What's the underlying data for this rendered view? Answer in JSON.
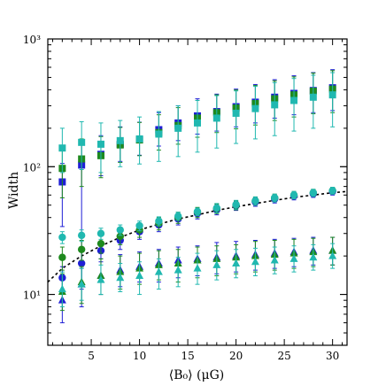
{
  "chart_data": {
    "type": "scatter",
    "title": "",
    "xlabel": "⟨B₀⟩ (μG)",
    "ylabel": "Width",
    "xlim": [
      0.5,
      31.5
    ],
    "ylim": [
      4,
      1000
    ],
    "yscale": "log",
    "grid": false,
    "legend": "none",
    "x_ticks": [
      5,
      10,
      15,
      20,
      25,
      30
    ],
    "x_tick_labels": [
      "5",
      "10",
      "15",
      "20",
      "25",
      "30"
    ],
    "y_ticks": [
      10,
      100,
      1000
    ],
    "y_tick_labels": [
      "10¹",
      "10²",
      "10³"
    ],
    "x": [
      2,
      4,
      6,
      8,
      10,
      12,
      14,
      16,
      18,
      20,
      22,
      24,
      26,
      28,
      30
    ],
    "series": [
      {
        "marker": "square",
        "color": "#1f1fd6",
        "values": [
          76,
          103,
          125,
          150,
          163,
          195,
          220,
          250,
          270,
          295,
          320,
          350,
          375,
          395,
          415
        ],
        "err_low": [
          42,
          92,
          40,
          40,
          40,
          50,
          60,
          70,
          80,
          90,
          100,
          110,
          120,
          130,
          140
        ],
        "err_high": [
          30,
          50,
          50,
          55,
          60,
          70,
          80,
          90,
          100,
          110,
          120,
          130,
          140,
          150,
          160
        ]
      },
      {
        "marker": "square",
        "color": "#1e8a1e",
        "values": [
          97,
          115,
          122,
          148,
          162,
          185,
          210,
          240,
          265,
          288,
          312,
          340,
          365,
          390,
          405
        ],
        "err_low": [
          40,
          45,
          40,
          40,
          40,
          50,
          60,
          70,
          80,
          90,
          100,
          110,
          120,
          130,
          140
        ],
        "err_high": [
          40,
          50,
          50,
          55,
          60,
          70,
          80,
          90,
          100,
          110,
          120,
          130,
          140,
          150,
          160
        ]
      },
      {
        "marker": "square",
        "color": "#20b8b0",
        "values": [
          140,
          155,
          150,
          160,
          165,
          180,
          200,
          220,
          240,
          262,
          285,
          305,
          330,
          350,
          365
        ],
        "err_low": [
          50,
          60,
          60,
          60,
          60,
          70,
          80,
          90,
          100,
          110,
          120,
          130,
          140,
          150,
          160
        ],
        "err_high": [
          60,
          70,
          70,
          70,
          80,
          90,
          100,
          110,
          120,
          130,
          140,
          150,
          160,
          170,
          180
        ]
      },
      {
        "marker": "circle",
        "color": "#1f1fd6",
        "values": [
          13.5,
          17.5,
          22,
          26.5,
          31,
          35,
          39,
          43,
          46,
          49.5,
          53,
          56,
          59,
          61.5,
          64
        ],
        "err_low": [
          3,
          6,
          4,
          4,
          4,
          4,
          4,
          4,
          4,
          4,
          4,
          4,
          4,
          4,
          4
        ],
        "err_high": [
          3,
          4,
          4,
          4,
          4,
          4,
          4,
          4,
          4,
          4,
          4,
          4,
          4,
          4,
          4
        ]
      },
      {
        "marker": "circle",
        "color": "#1e8a1e",
        "values": [
          19.5,
          22.5,
          25,
          28.5,
          32,
          36,
          40,
          44,
          47,
          50,
          54,
          57,
          60,
          62.5,
          65
        ],
        "err_low": [
          4,
          4,
          4,
          4,
          4,
          4,
          4,
          4,
          4,
          4,
          4,
          4,
          4,
          4,
          4
        ],
        "err_high": [
          4,
          4,
          4,
          4,
          4,
          4,
          4,
          4,
          4,
          4,
          4,
          4,
          4,
          4,
          4
        ]
      },
      {
        "marker": "circle",
        "color": "#20b8b0",
        "values": [
          28,
          29,
          30,
          32,
          34.5,
          37.5,
          41,
          44.5,
          47.5,
          50.5,
          54,
          57,
          60,
          62.5,
          65
        ],
        "err_low": [
          3,
          3,
          3,
          3,
          3,
          3,
          3,
          3,
          4,
          4,
          4,
          4,
          4,
          4,
          4
        ],
        "err_high": [
          3,
          3,
          3,
          3,
          3,
          3,
          3,
          3,
          4,
          4,
          4,
          4,
          4,
          4,
          4
        ]
      },
      {
        "marker": "triangle",
        "color": "#1f1fd6",
        "values": [
          9,
          12,
          14,
          15.5,
          16.5,
          17.5,
          18.5,
          19,
          19.5,
          20,
          20.5,
          21,
          21.5,
          22,
          22
        ],
        "err_low": [
          3,
          4,
          4,
          4,
          4,
          5,
          5,
          5,
          5,
          5,
          5,
          5,
          5,
          5,
          5
        ],
        "err_high": [
          4,
          4,
          5,
          5,
          5,
          5,
          5,
          5,
          6,
          6,
          6,
          6,
          6,
          6,
          6
        ]
      },
      {
        "marker": "triangle",
        "color": "#1e8a1e",
        "values": [
          10.5,
          12.5,
          14,
          15,
          16,
          17,
          17.5,
          18.5,
          19,
          19.5,
          20,
          20.5,
          21,
          21.5,
          22
        ],
        "err_low": [
          3,
          4,
          4,
          4,
          4,
          4,
          5,
          5,
          5,
          5,
          5,
          5,
          5,
          5,
          5
        ],
        "err_high": [
          4,
          4,
          5,
          5,
          5,
          5,
          5,
          5,
          5,
          5,
          6,
          6,
          6,
          6,
          6
        ]
      },
      {
        "marker": "triangle",
        "color": "#20b8b0",
        "values": [
          11,
          12,
          13,
          13.5,
          14,
          15,
          15.5,
          16,
          17,
          17.5,
          18,
          18.5,
          19,
          19.5,
          20
        ],
        "err_low": [
          3,
          3,
          3,
          3,
          4,
          4,
          4,
          4,
          4,
          4,
          4,
          4,
          4,
          4,
          4
        ],
        "err_high": [
          4,
          4,
          4,
          4,
          4,
          4,
          4,
          5,
          5,
          5,
          5,
          5,
          5,
          5,
          5
        ]
      }
    ],
    "fit_line": {
      "style": "dashed",
      "color": "#000000",
      "x": [
        0.5,
        2,
        4,
        6,
        8,
        10,
        12,
        14,
        16,
        18,
        20,
        22,
        24,
        26,
        28,
        30,
        31.5
      ],
      "y": [
        12.5,
        16,
        20,
        24,
        28,
        32,
        35.5,
        39,
        42,
        45.5,
        48.5,
        51.5,
        54.5,
        57.5,
        60,
        62.5,
        64
      ]
    }
  }
}
